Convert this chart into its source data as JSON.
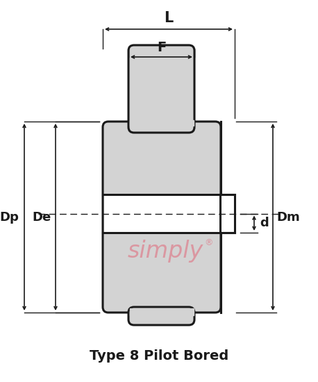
{
  "title": "Type 8 Pilot Bored",
  "fill_color": "#d3d3d3",
  "line_color": "#1a1a1a",
  "dim_color": "#1a1a1a",
  "watermark_color": "#e07080",
  "background": "#ffffff",
  "label_L": "L",
  "label_F": "F",
  "label_Dp": "Dp",
  "label_De": "De",
  "label_d": "d",
  "label_Dm": "Dm",
  "label_simply": "simply",
  "label_reg": "®",
  "fontsize_dim": 13,
  "fontsize_title": 13,
  "fontsize_watermark": 24
}
